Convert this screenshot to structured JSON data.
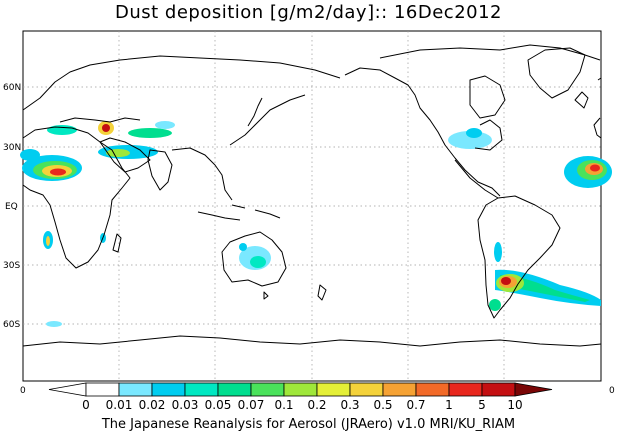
{
  "title": "Dust deposition [g/m2/day]:: 16Dec2012",
  "lat_labels": [
    "60N",
    "30N",
    "EQ",
    "30S",
    "60S"
  ],
  "lon_edge_left": "0",
  "lon_edge_right": "0",
  "colorbar": {
    "labels": [
      "0",
      "0.01",
      "0.02",
      "0.03",
      "0.05",
      "0.07",
      "0.1",
      "0.2",
      "0.3",
      "0.5",
      "0.7",
      "1",
      "5",
      "10"
    ],
    "colors": [
      "#ffffff",
      "#ffffff",
      "#7ae8ff",
      "#00cdf0",
      "#00e8c2",
      "#00de8f",
      "#4ae25b",
      "#9fe73a",
      "#e4ef37",
      "#f4d23b",
      "#f5a234",
      "#f26a28",
      "#e8271d",
      "#c40f12",
      "#a10c0c",
      "#7a0606"
    ]
  },
  "footer": "The Japanese Reanalysis for Aerosol (JRAero) v1.0 MRI/KU_RIAM"
}
